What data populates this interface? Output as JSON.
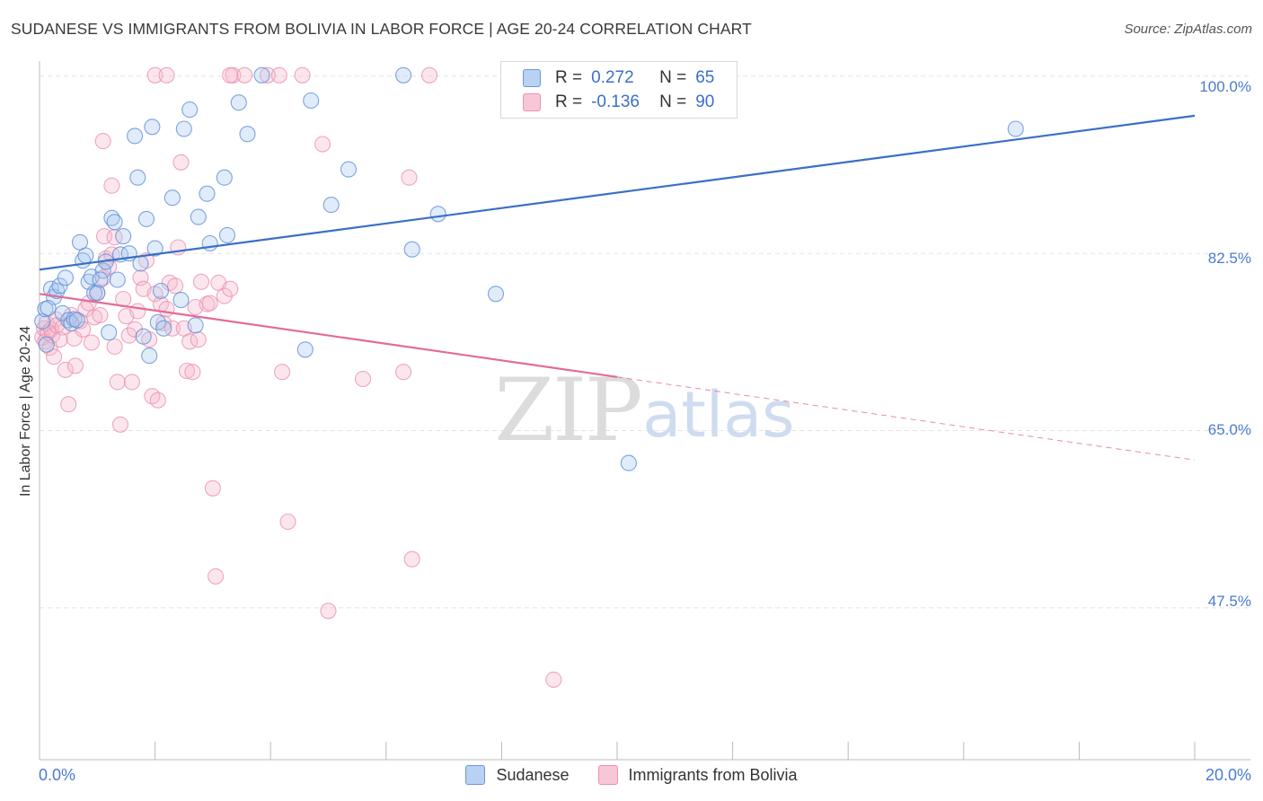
{
  "title": "SUDANESE VS IMMIGRANTS FROM BOLIVIA IN LABOR FORCE | AGE 20-24 CORRELATION CHART",
  "source": "Source: ZipAtlas.com",
  "watermark": {
    "zip": "ZIP",
    "atlas": "atlas"
  },
  "colors": {
    "blue": "#3b6fc6",
    "blue_fill": "#a9c8f0",
    "pink": "#e26b96",
    "pink_fill": "#f5b8cc",
    "grid": "#e4e4e4",
    "axis_label": "#4a7bd0"
  },
  "legend": {
    "r_label": "R =",
    "n_label": "N =",
    "series": [
      {
        "r": "0.272",
        "n": "65"
      },
      {
        "r": "-0.136",
        "n": "90"
      }
    ]
  },
  "chart_data": {
    "type": "scatter",
    "title": "SUDANESE VS IMMIGRANTS FROM BOLIVIA IN LABOR FORCE | AGE 20-24 CORRELATION CHART",
    "xlabel": "",
    "ylabel": "In Labor Force | Age 20-24",
    "xlim": [
      0,
      20
    ],
    "ylim": [
      32.5,
      101.5
    ],
    "x_tick_labels": [
      "0.0%",
      "20.0%"
    ],
    "y_ticks": [
      100,
      82.5,
      65,
      47.5
    ],
    "y_tick_labels": [
      "100.0%",
      "82.5%",
      "65.0%",
      "47.5%"
    ],
    "grid": true,
    "legend_position": "top-center",
    "series": [
      {
        "name": "Sudanese",
        "color": "#3b6fc6",
        "r": 0.272,
        "n": 65,
        "trend": {
          "x0": 0,
          "y0": 80.9,
          "x1": 20,
          "y1": 96.1,
          "dashed_from": null
        },
        "points": [
          [
            0.05,
            75.8
          ],
          [
            0.1,
            77.0
          ],
          [
            0.12,
            73.5
          ],
          [
            0.2,
            79.0
          ],
          [
            0.25,
            78.2
          ],
          [
            0.3,
            78.8
          ],
          [
            0.35,
            79.3
          ],
          [
            0.4,
            76.6
          ],
          [
            0.45,
            80.1
          ],
          [
            0.5,
            75.9
          ],
          [
            0.55,
            75.6
          ],
          [
            0.6,
            76.0
          ],
          [
            0.7,
            83.6
          ],
          [
            0.75,
            81.8
          ],
          [
            0.8,
            82.3
          ],
          [
            0.85,
            79.7
          ],
          [
            0.9,
            80.2
          ],
          [
            0.95,
            78.6
          ],
          [
            1.0,
            78.6
          ],
          [
            1.1,
            80.8
          ],
          [
            1.15,
            81.7
          ],
          [
            1.2,
            74.7
          ],
          [
            1.25,
            86.0
          ],
          [
            1.3,
            85.6
          ],
          [
            1.35,
            79.9
          ],
          [
            1.4,
            82.4
          ],
          [
            1.45,
            84.2
          ],
          [
            1.55,
            82.5
          ],
          [
            1.65,
            94.1
          ],
          [
            1.7,
            90.0
          ],
          [
            1.75,
            81.5
          ],
          [
            1.8,
            74.3
          ],
          [
            1.85,
            85.9
          ],
          [
            1.9,
            72.4
          ],
          [
            1.95,
            95.0
          ],
          [
            2.0,
            83.0
          ],
          [
            2.05,
            75.7
          ],
          [
            2.1,
            78.8
          ],
          [
            2.15,
            75.1
          ],
          [
            2.3,
            88.0
          ],
          [
            2.45,
            77.9
          ],
          [
            2.5,
            94.8
          ],
          [
            2.6,
            96.7
          ],
          [
            2.7,
            75.4
          ],
          [
            2.75,
            86.1
          ],
          [
            2.9,
            88.4
          ],
          [
            2.95,
            83.5
          ],
          [
            3.2,
            90.0
          ],
          [
            3.25,
            84.3
          ],
          [
            3.45,
            97.4
          ],
          [
            3.6,
            94.3
          ],
          [
            3.85,
            100.1
          ],
          [
            4.6,
            73.0
          ],
          [
            4.7,
            97.6
          ],
          [
            5.05,
            87.3
          ],
          [
            5.35,
            90.8
          ],
          [
            6.3,
            100.1
          ],
          [
            6.45,
            82.9
          ],
          [
            6.9,
            86.4
          ],
          [
            7.9,
            78.5
          ],
          [
            10.2,
            61.8
          ],
          [
            16.9,
            94.8
          ],
          [
            0.15,
            77.1
          ],
          [
            0.65,
            75.9
          ],
          [
            1.05,
            79.9
          ]
        ]
      },
      {
        "name": "Immigrants from Bolivia",
        "color": "#e26b96",
        "r": -0.136,
        "n": 90,
        "trend": {
          "x0": 0,
          "y0": 78.5,
          "x1": 20,
          "y1": 62.1,
          "dashed_from": 10.0
        },
        "points": [
          [
            0.05,
            74.2
          ],
          [
            0.08,
            75.1
          ],
          [
            0.1,
            73.8
          ],
          [
            0.12,
            75.6
          ],
          [
            0.15,
            74.7
          ],
          [
            0.18,
            73.2
          ],
          [
            0.2,
            75.0
          ],
          [
            0.22,
            74.4
          ],
          [
            0.25,
            72.3
          ],
          [
            0.28,
            76.0
          ],
          [
            0.3,
            75.4
          ],
          [
            0.35,
            74.0
          ],
          [
            0.4,
            75.2
          ],
          [
            0.45,
            71.0
          ],
          [
            0.5,
            67.6
          ],
          [
            0.55,
            76.4
          ],
          [
            0.6,
            74.1
          ],
          [
            0.62,
            71.4
          ],
          [
            0.7,
            75.8
          ],
          [
            0.75,
            75.0
          ],
          [
            0.8,
            77.0
          ],
          [
            0.85,
            77.6
          ],
          [
            0.9,
            73.7
          ],
          [
            0.95,
            76.2
          ],
          [
            1.0,
            78.6
          ],
          [
            1.05,
            76.4
          ],
          [
            1.1,
            80.1
          ],
          [
            1.12,
            84.2
          ],
          [
            1.15,
            82.0
          ],
          [
            1.2,
            81.2
          ],
          [
            1.25,
            82.4
          ],
          [
            1.3,
            84.1
          ],
          [
            1.1,
            93.6
          ],
          [
            1.25,
            89.2
          ],
          [
            1.3,
            73.3
          ],
          [
            1.35,
            69.8
          ],
          [
            1.4,
            65.6
          ],
          [
            1.45,
            78.0
          ],
          [
            1.5,
            76.3
          ],
          [
            1.55,
            74.4
          ],
          [
            1.6,
            69.8
          ],
          [
            1.65,
            75.0
          ],
          [
            1.7,
            76.8
          ],
          [
            1.75,
            80.1
          ],
          [
            1.8,
            79.0
          ],
          [
            1.85,
            81.8
          ],
          [
            1.9,
            74.0
          ],
          [
            1.95,
            68.4
          ],
          [
            2.0,
            78.5
          ],
          [
            2.05,
            68.0
          ],
          [
            2.1,
            77.5
          ],
          [
            2.15,
            75.6
          ],
          [
            2.2,
            77.0
          ],
          [
            2.25,
            79.6
          ],
          [
            2.3,
            75.1
          ],
          [
            2.35,
            79.3
          ],
          [
            2.4,
            83.1
          ],
          [
            2.45,
            91.5
          ],
          [
            2.5,
            75.1
          ],
          [
            2.55,
            70.9
          ],
          [
            2.6,
            73.8
          ],
          [
            2.65,
            70.8
          ],
          [
            2.7,
            77.2
          ],
          [
            2.75,
            74.0
          ],
          [
            2.8,
            79.7
          ],
          [
            2.9,
            77.5
          ],
          [
            2.95,
            77.6
          ],
          [
            3.0,
            59.3
          ],
          [
            3.05,
            50.6
          ],
          [
            3.1,
            79.6
          ],
          [
            3.2,
            78.3
          ],
          [
            3.3,
            79.0
          ],
          [
            3.35,
            100.1
          ],
          [
            3.55,
            100.1
          ],
          [
            3.95,
            100.1
          ],
          [
            4.15,
            100.1
          ],
          [
            4.2,
            70.8
          ],
          [
            4.3,
            56.0
          ],
          [
            4.9,
            93.3
          ],
          [
            5.0,
            47.2
          ],
          [
            5.6,
            70.1
          ],
          [
            6.3,
            70.8
          ],
          [
            6.4,
            90.0
          ],
          [
            6.45,
            52.3
          ],
          [
            6.75,
            100.1
          ],
          [
            8.9,
            40.4
          ],
          [
            2.0,
            100.1
          ],
          [
            2.2,
            100.1
          ],
          [
            3.3,
            100.1
          ],
          [
            4.55,
            100.1
          ]
        ]
      }
    ]
  }
}
